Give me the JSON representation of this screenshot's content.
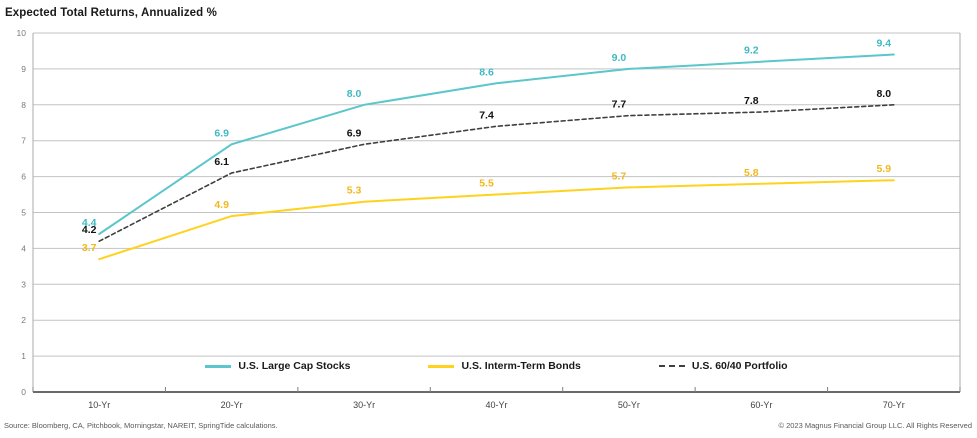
{
  "title": "Expected Total Returns, Annualized %",
  "chart_data": {
    "type": "line",
    "title": "Expected Total Returns, Annualized %",
    "categories": [
      "10-Yr",
      "20-Yr",
      "30-Yr",
      "40-Yr",
      "50-Yr",
      "60-Yr",
      "70-Yr"
    ],
    "series": [
      {
        "name": "U.S. Large Cap Stocks",
        "color": "#5BC6CB",
        "label_color": "#3FB9C4",
        "line_style": "solid",
        "values": [
          4.4,
          6.9,
          8.0,
          8.6,
          9.0,
          9.2,
          9.4
        ]
      },
      {
        "name": "U.S. Interm-Term Bonds",
        "color": "#FFD21E",
        "label_color": "#F2B71C",
        "line_style": "solid",
        "values": [
          3.7,
          4.9,
          5.3,
          5.5,
          5.7,
          5.8,
          5.9
        ]
      },
      {
        "name": "U.S. 60/40 Portfolio",
        "color": "#3F3F3F",
        "label_color": "#111111",
        "line_style": "dashed",
        "values": [
          4.2,
          6.1,
          6.9,
          7.4,
          7.7,
          7.8,
          8.0
        ]
      }
    ],
    "xlabel": "",
    "ylabel": "",
    "ylim": [
      0,
      10
    ],
    "y_ticks": [
      0,
      1,
      2,
      3,
      4,
      5,
      6,
      7,
      8,
      9,
      10
    ],
    "grid": true,
    "legend_position": "bottom-inside"
  },
  "footer": {
    "source": "Source: Bloomberg, CA, Pitchbook, Morningstar, NAREIT, SpringTide calculations.",
    "copyright": "© 2023 Magnus Financial Group LLC. All Rights Reserved"
  }
}
